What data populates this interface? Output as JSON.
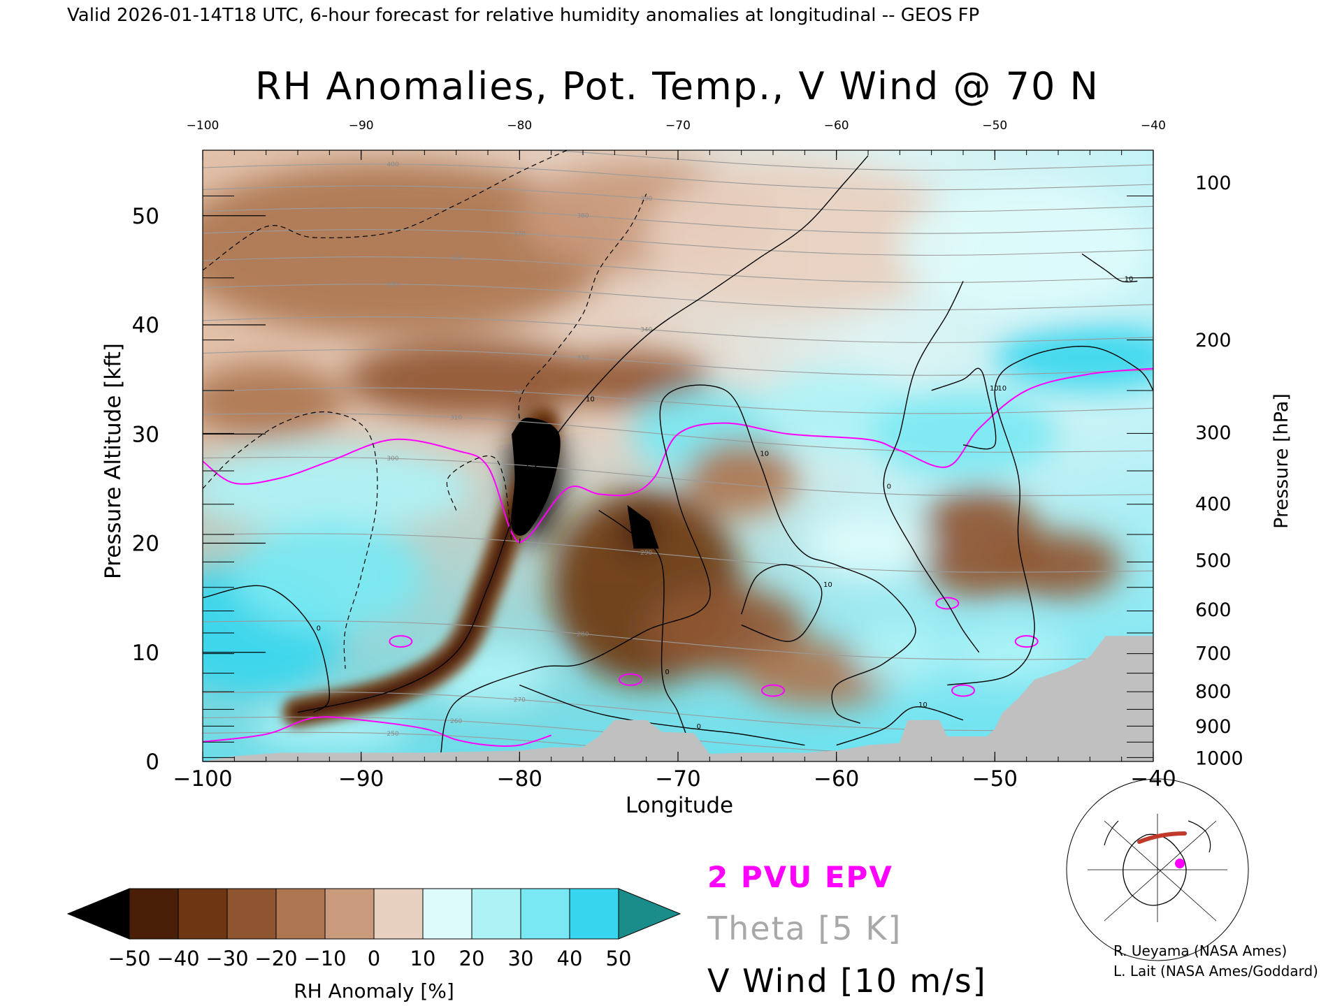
{
  "header": {
    "valid_line": "Valid 2026-01-14T18 UTC, 6-hour forecast for relative humidity anomalies at longitudinal -- GEOS FP"
  },
  "chart_data": {
    "type": "heatmap",
    "title": "RH Anomalies, Pot. Temp., V Wind @ 70 N",
    "xlabel": "Longitude",
    "ylabel_left": "Pressure Altitude [kft]",
    "ylabel_right": "Pressure [hPa]",
    "x_range": [
      -100,
      -40
    ],
    "y_range_kft": [
      0,
      56
    ],
    "x_ticks": [
      -100,
      -90,
      -80,
      -70,
      -60,
      -50,
      -40
    ],
    "x_tick_labels": [
      "−100",
      "−90",
      "−80",
      "−70",
      "−60",
      "−50",
      "−40"
    ],
    "x_top_tick_labels": [
      "−100",
      "−90",
      "−80",
      "−70",
      "−60",
      "−50",
      "−40"
    ],
    "y_ticks_kft": [
      0,
      10,
      20,
      30,
      40,
      50
    ],
    "y_tick_labels": [
      "0",
      "10",
      "20",
      "30",
      "40",
      "50"
    ],
    "pressure_ticks": [
      {
        "label": "100",
        "kft": 53.0
      },
      {
        "label": "200",
        "kft": 38.6
      },
      {
        "label": "300",
        "kft": 30.1
      },
      {
        "label": "400",
        "kft": 23.6
      },
      {
        "label": "500",
        "kft": 18.4
      },
      {
        "label": "600",
        "kft": 13.9
      },
      {
        "label": "700",
        "kft": 9.9
      },
      {
        "label": "800",
        "kft": 6.4
      },
      {
        "label": "900",
        "kft": 3.2
      },
      {
        "label": "1000",
        "kft": 0.3
      }
    ],
    "rh_anomaly_blobs": [
      {
        "lon": -88,
        "kft": 47,
        "rx": 14,
        "ry": 8,
        "value": -12
      },
      {
        "lon": -72,
        "kft": 50,
        "rx": 8,
        "ry": 5,
        "value": -6
      },
      {
        "lon": -62,
        "kft": 48,
        "rx": 10,
        "ry": 7,
        "value": 3
      },
      {
        "lon": -48,
        "kft": 47,
        "rx": 8,
        "ry": 6,
        "value": 12
      },
      {
        "lon": -83,
        "kft": 35,
        "rx": 8,
        "ry": 3.5,
        "value": -28
      },
      {
        "lon": -96,
        "kft": 33,
        "rx": 5,
        "ry": 3.5,
        "value": -18
      },
      {
        "lon": -73,
        "kft": 35,
        "rx": 5,
        "ry": 2.5,
        "value": -22
      },
      {
        "lon": -92,
        "kft": 25,
        "rx": 9,
        "ry": 4,
        "value": 28
      },
      {
        "lon": -97,
        "kft": 12,
        "rx": 6,
        "ry": 6,
        "value": 42
      },
      {
        "lon": -92,
        "kft": 17,
        "rx": 6,
        "ry": 5,
        "value": 32
      },
      {
        "lon": -68,
        "kft": 30,
        "rx": 5,
        "ry": 4,
        "value": 30
      },
      {
        "lon": -60,
        "kft": 32,
        "rx": 5,
        "ry": 4,
        "value": 25
      },
      {
        "lon": -52,
        "kft": 30,
        "rx": 6,
        "ry": 4,
        "value": 30
      },
      {
        "lon": -44,
        "kft": 37,
        "rx": 6,
        "ry": 3,
        "value": 42
      },
      {
        "lon": -66,
        "kft": 26,
        "rx": 3.5,
        "ry": 3.5,
        "value": -14
      },
      {
        "lon": -51,
        "kft": 20,
        "rx": 4,
        "ry": 5,
        "value": -30
      },
      {
        "lon": -46,
        "kft": 18,
        "rx": 4,
        "ry": 3,
        "value": -24
      },
      {
        "lon": -72,
        "kft": 16,
        "rx": 6,
        "ry": 9,
        "value": -34
      },
      {
        "lon": -67,
        "kft": 12,
        "rx": 5,
        "ry": 4,
        "value": -24
      },
      {
        "lon": -61,
        "kft": 8,
        "rx": 5,
        "ry": 3,
        "value": -20
      },
      {
        "lon": -58,
        "kft": 20,
        "rx": 4,
        "ry": 3,
        "value": 18
      },
      {
        "lon": -56,
        "kft": 10,
        "rx": 3,
        "ry": 3,
        "value": 22
      },
      {
        "lon": -82,
        "kft": 8,
        "rx": 4,
        "ry": 3,
        "value": 22
      },
      {
        "lon": -92,
        "kft": 3,
        "rx": 5,
        "ry": 2,
        "value": 26
      },
      {
        "lon": -79,
        "kft": 26,
        "rx": 1.6,
        "ry": 6,
        "value": -55
      },
      {
        "lon": -72.5,
        "kft": 21,
        "rx": 0.8,
        "ry": 2,
        "value": -55
      },
      {
        "lon": -49,
        "kft": 10,
        "rx": 4,
        "ry": 2.5,
        "value": 20
      }
    ],
    "rh_band_path_lonkft": [
      [
        -94,
        4.5
      ],
      [
        -88,
        6.5
      ],
      [
        -84,
        10
      ],
      [
        -82,
        16
      ],
      [
        -80.5,
        22
      ],
      [
        -79,
        27
      ],
      [
        -78.5,
        31
      ]
    ],
    "rh_band_value": -45,
    "dry_core_outline_lonkft": [
      [
        -80.5,
        30
      ],
      [
        -79.5,
        31.5
      ],
      [
        -77.5,
        30
      ],
      [
        -78,
        25
      ],
      [
        -79.5,
        21
      ],
      [
        -80.5,
        21.5
      ],
      [
        -80.3,
        26
      ]
    ],
    "terrain_lonkft": [
      [
        -100,
        0
      ],
      [
        -98,
        0.5
      ],
      [
        -95,
        0.8
      ],
      [
        -90,
        0.8
      ],
      [
        -86,
        0.8
      ],
      [
        -80,
        1.0
      ],
      [
        -78,
        1.3
      ],
      [
        -76,
        1.3
      ],
      [
        -75,
        2.3
      ],
      [
        -74,
        3.8
      ],
      [
        -72,
        3.8
      ],
      [
        -71,
        2.7
      ],
      [
        -69,
        2.6
      ],
      [
        -68,
        0.7
      ],
      [
        -66,
        0.8
      ],
      [
        -62,
        0.8
      ],
      [
        -60,
        1.0
      ],
      [
        -58,
        1.5
      ],
      [
        -56,
        1.7
      ],
      [
        -55.5,
        3.8
      ],
      [
        -53.5,
        3.8
      ],
      [
        -53,
        2.3
      ],
      [
        -50.5,
        2.3
      ],
      [
        -50,
        3.0
      ],
      [
        -49.5,
        4.5
      ],
      [
        -48.5,
        5.8
      ],
      [
        -47.5,
        7.5
      ],
      [
        -45.5,
        8.5
      ],
      [
        -44,
        9.6
      ],
      [
        -43,
        11.5
      ],
      [
        -40,
        11.5
      ],
      [
        -40,
        0
      ]
    ],
    "theta_levels_k": [
      250,
      260,
      270,
      280,
      290,
      300,
      310,
      320,
      330,
      340,
      350,
      360,
      370,
      380,
      390,
      400,
      410
    ],
    "theta_label": "Theta [5 K]",
    "epv_label": "2 PVU EPV",
    "epv_2pvu_lonkft": [
      [
        -100,
        27.5
      ],
      [
        -98,
        25.5
      ],
      [
        -95,
        26
      ],
      [
        -92,
        27.5
      ],
      [
        -88,
        29.5
      ],
      [
        -84,
        28.5
      ],
      [
        -82,
        27
      ],
      [
        -80.5,
        21
      ],
      [
        -79.5,
        20.5
      ],
      [
        -77,
        25
      ],
      [
        -75,
        24.5
      ],
      [
        -73,
        24.5
      ],
      [
        -71.5,
        26
      ],
      [
        -70,
        30
      ],
      [
        -67,
        31
      ],
      [
        -63,
        30
      ],
      [
        -58,
        29.5
      ],
      [
        -56,
        28.5
      ],
      [
        -53,
        27
      ],
      [
        -51,
        30.5
      ],
      [
        -48,
        34
      ],
      [
        -44,
        35.5
      ],
      [
        -40,
        36
      ]
    ],
    "epv_low_lonkft": [
      [
        -100,
        1.8
      ],
      [
        -96,
        2.5
      ],
      [
        -93,
        4
      ],
      [
        -90,
        3.8
      ],
      [
        -86,
        3
      ],
      [
        -84,
        2
      ],
      [
        -82,
        1.5
      ],
      [
        -80,
        1.5
      ],
      [
        -78,
        2.4
      ]
    ],
    "vwind_label": "V Wind [10 m/s]",
    "vwind_contours_lonkft": [
      [
        [
          -94,
          4.5
        ],
        [
          -88,
          6.5
        ],
        [
          -84,
          10
        ],
        [
          -82,
          16
        ],
        [
          -80.5,
          22
        ],
        [
          -79,
          27
        ],
        [
          -76,
          33
        ],
        [
          -72,
          39
        ],
        [
          -68,
          43
        ],
        [
          -65,
          46
        ],
        [
          -62,
          49
        ],
        [
          -59.5,
          53
        ],
        [
          -58,
          55.5
        ]
      ],
      [
        [
          -100,
          15
        ],
        [
          -96,
          16
        ],
        [
          -93,
          12
        ],
        [
          -92,
          6
        ],
        [
          -93,
          4.5
        ]
      ],
      [
        [
          -80,
          7
        ],
        [
          -76,
          4.8
        ],
        [
          -73,
          3.8
        ],
        [
          -69,
          3
        ],
        [
          -66,
          2.5
        ],
        [
          -62,
          1.5
        ]
      ],
      [
        [
          -85,
          0.5
        ],
        [
          -84,
          5.5
        ],
        [
          -79,
          8.5
        ],
        [
          -76,
          9
        ],
        [
          -72,
          12
        ],
        [
          -68,
          15
        ],
        [
          -70,
          24
        ],
        [
          -71,
          33
        ],
        [
          -67,
          34
        ],
        [
          -65,
          28
        ],
        [
          -63.5,
          22
        ],
        [
          -62,
          19
        ],
        [
          -60,
          18
        ],
        [
          -57,
          16
        ],
        [
          -55,
          12
        ],
        [
          -57,
          9
        ],
        [
          -60,
          7
        ],
        [
          -60,
          4.5
        ],
        [
          -58.5,
          3.5
        ]
      ],
      [
        [
          -75,
          23
        ],
        [
          -73,
          21
        ],
        [
          -71,
          18
        ],
        [
          -71,
          8
        ],
        [
          -70,
          4.5
        ],
        [
          -69,
          0.5
        ]
      ],
      [
        [
          -60,
          1.5
        ],
        [
          -57,
          3
        ],
        [
          -55,
          5
        ],
        [
          -52,
          3.8
        ]
      ],
      [
        [
          -53,
          7
        ],
        [
          -49,
          8
        ],
        [
          -47.5,
          12
        ],
        [
          -48.5,
          20
        ],
        [
          -48.5,
          26
        ],
        [
          -50,
          34
        ],
        [
          -48,
          37
        ],
        [
          -44,
          38
        ],
        [
          -41,
          36
        ],
        [
          -40,
          34
        ]
      ],
      [
        [
          -44.5,
          46.5
        ],
        [
          -43,
          45
        ],
        [
          -42,
          44
        ],
        [
          -41,
          44
        ]
      ],
      [
        [
          -54,
          34
        ],
        [
          -52,
          35
        ],
        [
          -51,
          36
        ],
        [
          -50.5,
          34
        ],
        [
          -50,
          29
        ],
        [
          -52,
          29
        ]
      ],
      [
        [
          -52,
          44
        ],
        [
          -53,
          41
        ],
        [
          -55,
          36
        ],
        [
          -56,
          30
        ],
        [
          -57,
          25
        ],
        [
          -55,
          19
        ],
        [
          -53,
          14.5
        ],
        [
          -52,
          12
        ],
        [
          -51,
          10
        ]
      ],
      [
        [
          -66,
          13.5
        ],
        [
          -65,
          17
        ],
        [
          -63,
          18
        ],
        [
          -61,
          16
        ],
        [
          -61.5,
          13
        ],
        [
          -63,
          11
        ],
        [
          -66,
          12.5
        ]
      ]
    ],
    "vwind_dashed_lonkft": [
      [
        [
          -100,
          45
        ],
        [
          -96,
          49
        ],
        [
          -93,
          48
        ],
        [
          -88,
          48.5
        ],
        [
          -84,
          51
        ],
        [
          -80,
          54
        ],
        [
          -77,
          56
        ]
      ],
      [
        [
          -100,
          25
        ],
        [
          -98,
          28
        ],
        [
          -95,
          31
        ],
        [
          -92,
          32
        ],
        [
          -89.5,
          30
        ],
        [
          -89,
          24
        ],
        [
          -90,
          17
        ],
        [
          -91,
          12
        ],
        [
          -91,
          8.5
        ]
      ],
      [
        [
          -84,
          23
        ],
        [
          -84.5,
          26
        ],
        [
          -82,
          28
        ],
        [
          -81,
          26
        ],
        [
          -80.5,
          20
        ]
      ],
      [
        [
          -80,
          20
        ],
        [
          -79.5,
          27
        ],
        [
          -80,
          33
        ],
        [
          -78,
          37
        ],
        [
          -76,
          41
        ],
        [
          -75,
          45
        ],
        [
          -73,
          49
        ],
        [
          -72,
          52
        ]
      ]
    ],
    "vwind_contour_labels": [
      "10",
      "0",
      "0",
      "10",
      "0",
      "10",
      "10",
      "10",
      "10",
      "0",
      "10"
    ],
    "colorbar": {
      "label": "RH Anomaly [%]",
      "tick_labels": [
        "−50",
        "−40",
        "−30",
        "−20",
        "−10",
        "0",
        "10",
        "20",
        "30",
        "40",
        "50"
      ],
      "colors": [
        "#000000",
        "#4a1f08",
        "#6e3612",
        "#8f5530",
        "#ad7650",
        "#c99a7c",
        "#e8d0c0",
        "#ddfbfb",
        "#aef2f6",
        "#7ae8f2",
        "#38d6ee",
        "#12b2d2",
        "#0a8ca8",
        "#1a8c8a"
      ]
    },
    "inset_map_label": "location map",
    "credits": [
      "R. Ueyama (NASA Ames)",
      "L. Lait (NASA Ames/Goddard)"
    ],
    "grid": false,
    "legend_placement": "bottom-center"
  }
}
